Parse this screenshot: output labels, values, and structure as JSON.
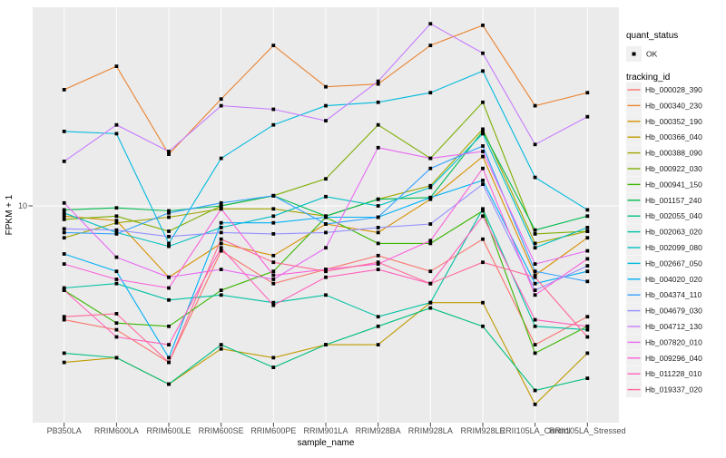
{
  "figure": {
    "y_axis": {
      "title": "FPKM + 1",
      "tick_label": "10"
    },
    "x_axis": {
      "title": "sample_name"
    },
    "legend": {
      "quant_status": {
        "title": "quant_status",
        "items": [
          {
            "label": "OK",
            "marker": "black-point"
          }
        ]
      },
      "tracking_id": {
        "title": "tracking_id"
      }
    },
    "colors": {
      "panel_background": "#EBEBEB",
      "gridline": "#FFFFFF",
      "tick_mark": "#333333",
      "tick_text": "#4d4d4d",
      "point_marker": "#000000",
      "legend_key_background": "#F0F0F0"
    }
  },
  "chart_data": {
    "type": "line",
    "title": "",
    "xlabel": "sample_name",
    "ylabel": "FPKM + 1",
    "y_scale": "log10",
    "y_ticks_labeled": [
      10
    ],
    "grid": "vertical major gridlines per category + horizontal gridline at 10",
    "legend_position": "right",
    "point_marker": "small black point on every vertex (quant_status = OK)",
    "categories": [
      "PB350LA",
      "RRIM600LA",
      "RRIM600LE",
      "RRIM600SE",
      "RRIM600PE",
      "RRIM901LA",
      "RRIM928BA",
      "RRIM928LA",
      "RRIM928LE",
      "RRII105LA_Control",
      "RRII105LA_Stressed"
    ],
    "series": [
      {
        "tracking_id": "Hb_000028_390",
        "color": "#F8766D",
        "values": [
          3.1,
          2.8,
          2.0,
          6.3,
          4.5,
          5.2,
          6.0,
          5.1,
          7.1,
          2.4,
          3.2
        ]
      },
      {
        "tracking_id": "Hb_000340_230",
        "color": "#EA8331",
        "values": [
          33,
          42,
          17,
          30,
          52,
          34,
          35,
          52,
          64,
          28,
          32
        ]
      },
      {
        "tracking_id": "Hb_000352_190",
        "color": "#D89000",
        "values": [
          9.0,
          8.6,
          4.8,
          6.8,
          6.0,
          8.3,
          7.6,
          10.7,
          16.6,
          4.9,
          7.2
        ]
      },
      {
        "tracking_id": "Hb_000366_040",
        "color": "#C09B00",
        "values": [
          2.0,
          2.1,
          1.6,
          2.3,
          2.1,
          2.4,
          2.4,
          3.7,
          3.7,
          1.3,
          2.2
        ]
      },
      {
        "tracking_id": "Hb_000388_090",
        "color": "#A3A500",
        "values": [
          7.2,
          8.4,
          8.9,
          9.7,
          9.7,
          9.0,
          10.7,
          12.3,
          22,
          6.8,
          7.7
        ]
      },
      {
        "tracking_id": "Hb_000922_030",
        "color": "#7CAE00",
        "values": [
          8.7,
          9.0,
          7.7,
          10.0,
          11.1,
          13.2,
          23,
          16.3,
          29,
          7.5,
          7.7
        ]
      },
      {
        "tracking_id": "Hb_000941_150",
        "color": "#39B600",
        "values": [
          4.2,
          3.0,
          2.9,
          4.2,
          5.1,
          8.9,
          6.8,
          6.8,
          9.5,
          2.2,
          2.9
        ]
      },
      {
        "tracking_id": "Hb_001157_240",
        "color": "#00BB4E",
        "values": [
          9.6,
          9.8,
          9.5,
          10.0,
          11.1,
          9.0,
          10.7,
          10.9,
          21.5,
          7.8,
          9.0
        ]
      },
      {
        "tracking_id": "Hb_002055_040",
        "color": "#00BF7D",
        "values": [
          2.2,
          2.1,
          1.6,
          2.4,
          1.9,
          2.4,
          2.9,
          3.5,
          2.9,
          1.5,
          1.7
        ]
      },
      {
        "tracking_id": "Hb_002063_020",
        "color": "#00C1A3",
        "values": [
          4.3,
          4.5,
          3.8,
          4.0,
          3.7,
          4.0,
          3.2,
          3.7,
          9.7,
          2.9,
          2.8
        ]
      },
      {
        "tracking_id": "Hb_002099_080",
        "color": "#00BFC4",
        "values": [
          9.3,
          7.6,
          6.6,
          8.0,
          9.0,
          11.0,
          10.0,
          12.1,
          21,
          6.5,
          8.0
        ]
      },
      {
        "tracking_id": "Hb_002667_050",
        "color": "#00BADE",
        "values": [
          21.5,
          21,
          6.8,
          16.3,
          23,
          28,
          29,
          32,
          40,
          13.4,
          9.6
        ]
      },
      {
        "tracking_id": "Hb_004020_020",
        "color": "#00B0F6",
        "values": [
          6.1,
          5.1,
          2.1,
          8.4,
          8.4,
          8.9,
          8.9,
          10.9,
          13.0,
          4.5,
          5.1
        ]
      },
      {
        "tracking_id": "Hb_004374_110",
        "color": "#35A2FF",
        "values": [
          7.6,
          7.5,
          9.3,
          10.3,
          11.1,
          8.3,
          8.9,
          14.7,
          18.5,
          5.1,
          4.6
        ]
      },
      {
        "tracking_id": "Hb_004679_030",
        "color": "#9590FF",
        "values": [
          7.9,
          7.8,
          7.3,
          7.6,
          7.5,
          7.6,
          8.0,
          8.3,
          12.5,
          4.2,
          5.4
        ]
      },
      {
        "tracking_id": "Hb_004712_130",
        "color": "#C77CFF",
        "values": [
          15.8,
          23,
          17.5,
          28,
          27,
          24,
          36,
          65,
          48,
          18.8,
          25
        ]
      },
      {
        "tracking_id": "Hb_007820_010",
        "color": "#E76BF3",
        "values": [
          10.3,
          5.9,
          4.8,
          5.2,
          4.7,
          6.5,
          18.2,
          16.3,
          17.5,
          5.5,
          6.3
        ]
      },
      {
        "tracking_id": "Hb_009296_040",
        "color": "#FA62DB",
        "values": [
          5.5,
          4.7,
          4.3,
          9.7,
          4.9,
          5.2,
          5.5,
          7.0,
          14.7,
          4.0,
          5.8
        ]
      },
      {
        "tracking_id": "Hb_011228_010",
        "color": "#FF62BC",
        "values": [
          4.2,
          2.6,
          2.4,
          6.5,
          3.6,
          4.8,
          5.2,
          4.5,
          9.0,
          3.1,
          2.9
        ]
      },
      {
        "tracking_id": "Hb_019337_020",
        "color": "#FF6A98",
        "values": [
          3.2,
          3.3,
          2.0,
          7.1,
          5.6,
          5.1,
          5.6,
          4.5,
          5.6,
          4.8,
          2.6
        ]
      }
    ]
  }
}
